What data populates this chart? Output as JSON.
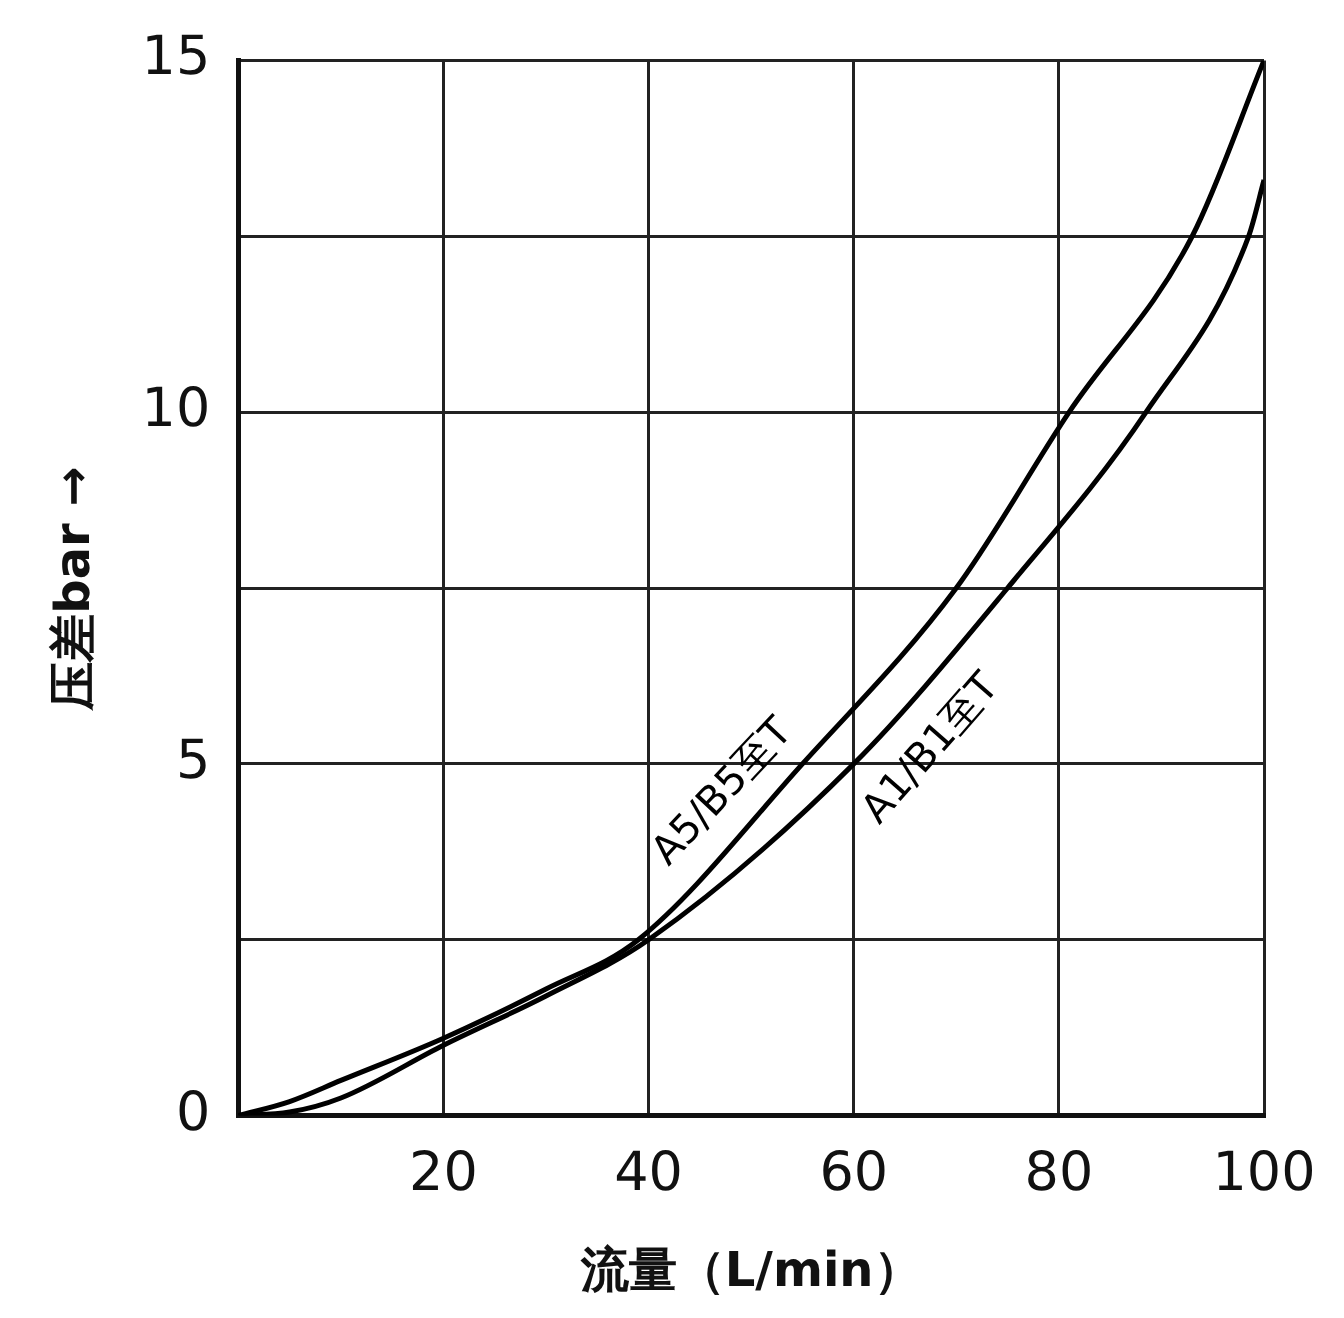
{
  "chart_data": {
    "type": "line",
    "xlabel": "流量（L/min）",
    "ylabel": "压差bar →",
    "xlim": [
      0,
      100
    ],
    "ylim": [
      0,
      15
    ],
    "xticks": [
      {
        "value": 0,
        "label": null
      },
      20,
      40,
      60,
      80,
      100
    ],
    "yticks": [
      0,
      {
        "value": 2.5,
        "label": null
      },
      5,
      {
        "value": 7.5,
        "label": null
      },
      10,
      {
        "value": 12.5,
        "label": null
      },
      15
    ],
    "grid": true,
    "legend": false,
    "marker": "none",
    "line_style": "solid",
    "series": [
      {
        "name": "A5/B5至T",
        "color": "#000000",
        "x": [
          0,
          5,
          10,
          20,
          30,
          39,
          55,
          70,
          81,
          93,
          100
        ],
        "values": [
          0,
          0.2,
          0.5,
          1.1,
          1.8,
          2.5,
          5,
          7.5,
          10,
          12.5,
          15
        ]
      },
      {
        "name": "A1/B1至T",
        "color": "#000000",
        "x": [
          0,
          5,
          10,
          20,
          30,
          40,
          60,
          75,
          88.5,
          98.5,
          100
        ],
        "values": [
          0,
          0.05,
          0.25,
          1.0,
          1.7,
          2.5,
          5,
          7.5,
          10,
          12.5,
          13.3
        ]
      }
    ]
  }
}
